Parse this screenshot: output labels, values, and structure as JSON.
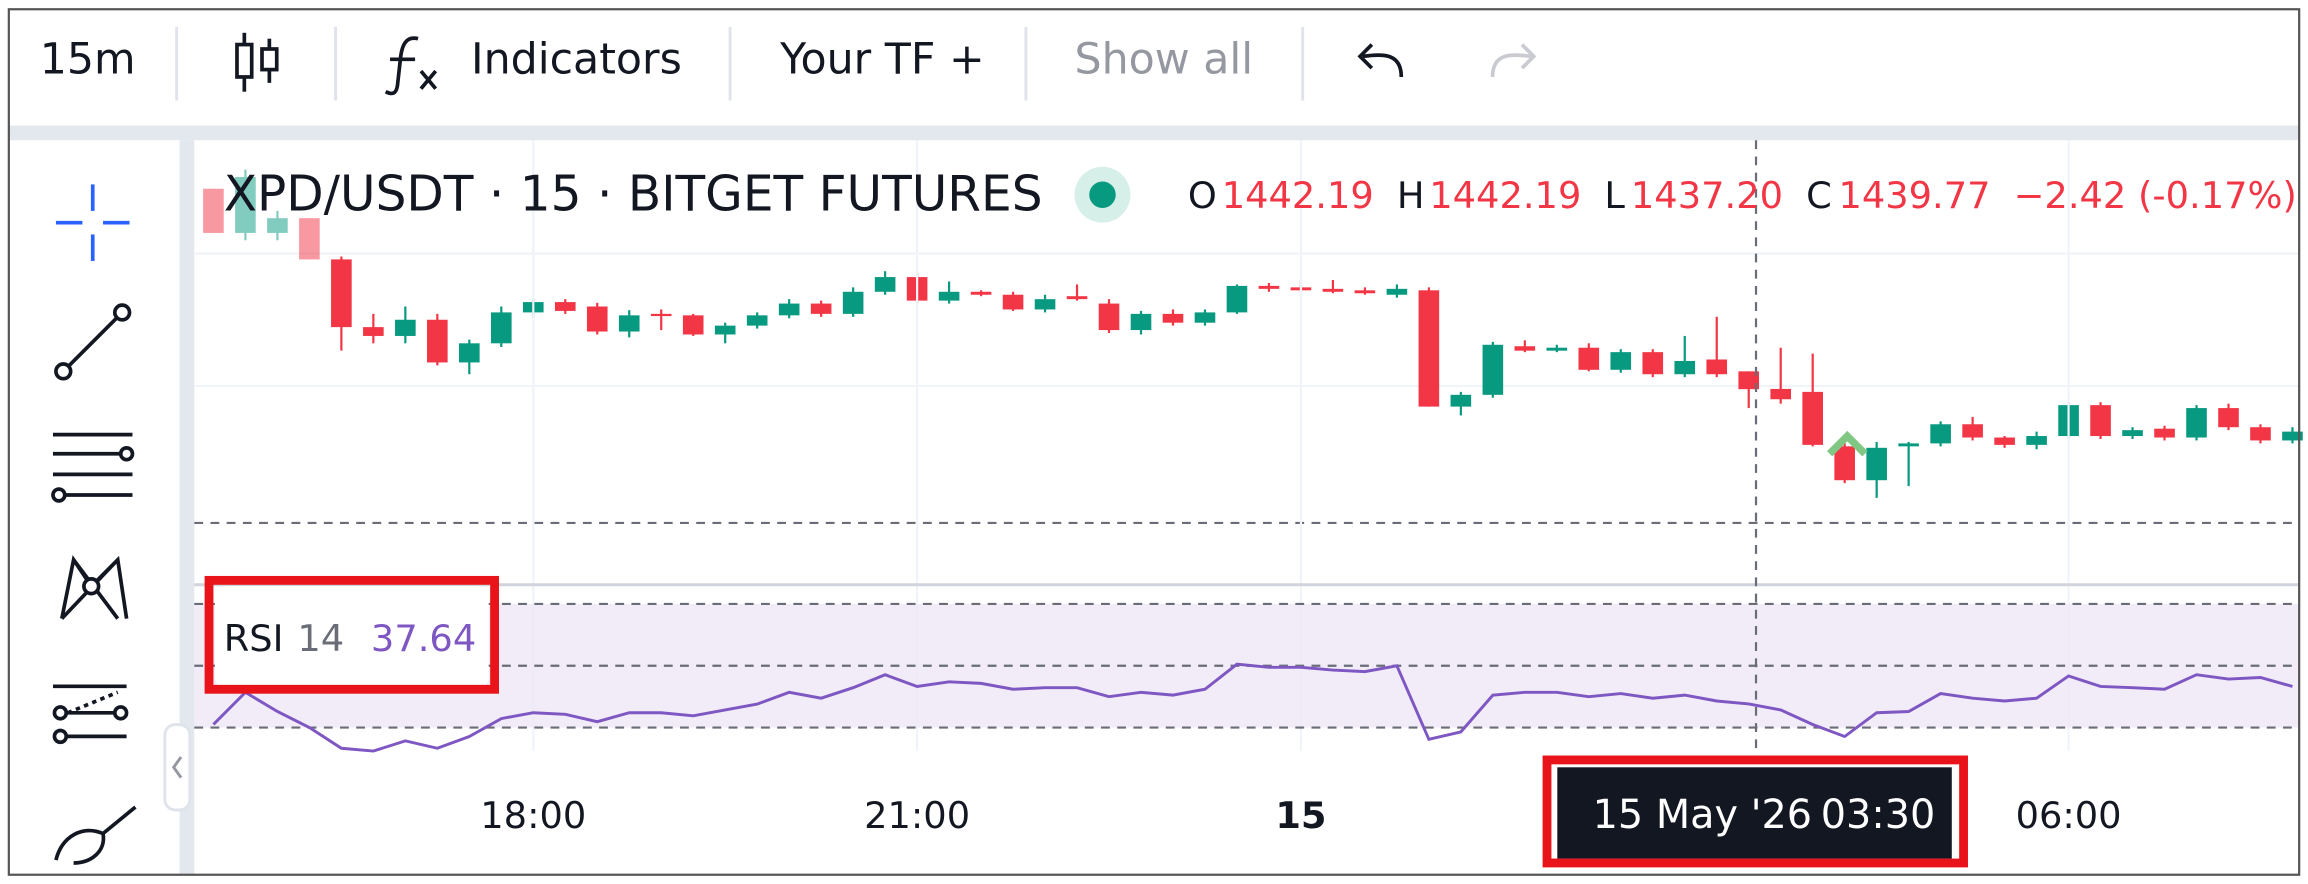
{
  "toolbar": {
    "interval": "15m",
    "indicators": "Indicators",
    "your_tf": "Your TF +",
    "show_all": "Show all"
  },
  "legend": {
    "symbol": "XPD/USDT · 15 · BITGET FUTURES",
    "o_label": "O",
    "open": "1442.19",
    "h_label": "H",
    "high": "1442.19",
    "l_label": "L",
    "low": "1437.20",
    "c_label": "C",
    "close": "1439.77",
    "change": "−2.42 (-0.17%)"
  },
  "rsi_legend": {
    "name": "RSI",
    "length": "14",
    "value": "37.64"
  },
  "crosshair": {
    "date": "15 May '26",
    "time": "03:30"
  },
  "chart_data": [
    {
      "type": "candlestick",
      "up_color": "#089981",
      "down_color": "#f23645",
      "ylim": [
        1413.59,
        1473.59
      ],
      "x": [
        "2026-05-14T15:30",
        "2026-05-14T15:45",
        "2026-05-14T16:00",
        "2026-05-14T16:15",
        "2026-05-14T16:30",
        "2026-05-14T16:45",
        "2026-05-14T17:00",
        "2026-05-14T17:15",
        "2026-05-14T17:30",
        "2026-05-14T17:45",
        "2026-05-14T18:00",
        "2026-05-14T18:15",
        "2026-05-14T18:30",
        "2026-05-14T18:45",
        "2026-05-14T19:00",
        "2026-05-14T19:15",
        "2026-05-14T19:30",
        "2026-05-14T19:45",
        "2026-05-14T20:00",
        "2026-05-14T20:15",
        "2026-05-14T20:30",
        "2026-05-14T20:45",
        "2026-05-14T21:00",
        "2026-05-14T21:15",
        "2026-05-14T21:30",
        "2026-05-14T21:45",
        "2026-05-14T22:00",
        "2026-05-14T22:15",
        "2026-05-14T22:30",
        "2026-05-14T22:45",
        "2026-05-14T23:00",
        "2026-05-14T23:15",
        "2026-05-14T23:30",
        "2026-05-14T23:45",
        "2026-05-15T00:00",
        "2026-05-15T00:15",
        "2026-05-15T00:30",
        "2026-05-15T00:45",
        "2026-05-15T01:00",
        "2026-05-15T01:15",
        "2026-05-15T01:30",
        "2026-05-15T01:45",
        "2026-05-15T02:00",
        "2026-05-15T02:15",
        "2026-05-15T02:30",
        "2026-05-15T02:45",
        "2026-05-15T03:00",
        "2026-05-15T03:15",
        "2026-05-15T03:30",
        "2026-05-15T03:45",
        "2026-05-15T04:00",
        "2026-05-15T04:15",
        "2026-05-15T04:30",
        "2026-05-15T04:45",
        "2026-05-15T05:00",
        "2026-05-15T05:15",
        "2026-05-15T05:30",
        "2026-05-15T05:45",
        "2026-05-15T06:00",
        "2026-05-15T06:15",
        "2026-05-15T06:30",
        "2026-05-15T06:45",
        "2026-05-15T07:00",
        "2026-05-15T07:15",
        "2026-05-15T07:30",
        "2026-05-15T07:45"
      ],
      "open": [
        1467,
        1461,
        1461,
        1463,
        1457.4,
        1448.2,
        1447,
        1449.2,
        1443.4,
        1446,
        1450.2,
        1451.6,
        1451,
        1447.6,
        1450,
        1449.8,
        1447.2,
        1448.4,
        1449.8,
        1451.4,
        1450,
        1453,
        1455,
        1451.8,
        1453,
        1452.6,
        1450.6,
        1452.4,
        1451.4,
        1447.8,
        1450,
        1448.8,
        1450.2,
        1453.8,
        1453.6,
        1453.4,
        1453.2,
        1452.6,
        1453.2,
        1437.4,
        1439,
        1445.6,
        1445,
        1445.4,
        1442.4,
        1444.8,
        1441.8,
        1443.8,
        1442.19,
        1439.8,
        1439.4,
        1432,
        1427.4,
        1432,
        1432.4,
        1435,
        1433.2,
        1432.2,
        1433.4,
        1437.6,
        1433.4,
        1434.4,
        1433.2,
        1437.2,
        1434.6,
        1432.8
      ],
      "high": [
        1467,
        1469.6,
        1464,
        1463,
        1457.8,
        1450,
        1451,
        1450,
        1446.5,
        1451,
        1452,
        1452,
        1451.5,
        1450.5,
        1450.6,
        1450,
        1448.8,
        1450.2,
        1452,
        1451.8,
        1453.6,
        1455.8,
        1455.6,
        1454.4,
        1453.2,
        1453,
        1452.6,
        1454,
        1452,
        1450.4,
        1450.6,
        1450.6,
        1454,
        1454.2,
        1454.6,
        1454.6,
        1453.6,
        1454,
        1453.6,
        1439.4,
        1446.2,
        1446.4,
        1445.8,
        1446,
        1445.2,
        1445.2,
        1447,
        1449.6,
        1442.19,
        1445.4,
        1444.6,
        1432.4,
        1432.6,
        1432.6,
        1435.4,
        1436,
        1433.4,
        1434,
        1438,
        1438,
        1434.6,
        1434.8,
        1437.6,
        1437.8,
        1435,
        1434.6
      ],
      "low": [
        1461,
        1460,
        1460,
        1457.4,
        1445,
        1446,
        1446,
        1443,
        1441.8,
        1445.5,
        1449.5,
        1450,
        1447.2,
        1446.8,
        1447.8,
        1447,
        1446,
        1448,
        1449.4,
        1449.6,
        1449.6,
        1452.6,
        1451.4,
        1451.4,
        1452.4,
        1450.4,
        1450.2,
        1451.8,
        1447.4,
        1447.2,
        1448.4,
        1448.4,
        1450,
        1453,
        1453,
        1452.8,
        1452.6,
        1452.2,
        1437.4,
        1436.2,
        1438.6,
        1444.8,
        1444.8,
        1442.2,
        1442,
        1441.4,
        1441.4,
        1441.4,
        1437.2,
        1437.8,
        1432,
        1427,
        1425,
        1426.6,
        1432,
        1432.8,
        1431.8,
        1431.6,
        1433,
        1433,
        1433,
        1432.8,
        1432.8,
        1434.2,
        1432.4,
        1432.4
      ],
      "close": [
        1461,
        1468.6,
        1463,
        1457.4,
        1448.2,
        1447,
        1449.2,
        1443.4,
        1446,
        1450.2,
        1451.6,
        1450.4,
        1447.6,
        1449.8,
        1449.8,
        1447.2,
        1448.4,
        1449.8,
        1451.4,
        1450,
        1453,
        1455,
        1451.8,
        1453,
        1452.6,
        1450.6,
        1452,
        1452,
        1447.8,
        1450,
        1448.8,
        1450.2,
        1453.8,
        1453.4,
        1453.2,
        1453,
        1452.8,
        1453.4,
        1437.4,
        1439,
        1445.8,
        1445,
        1445.4,
        1442.4,
        1444.8,
        1441.8,
        1443.6,
        1441.8,
        1439.77,
        1438.4,
        1432.2,
        1427.4,
        1431.8,
        1432.4,
        1435,
        1433.2,
        1432.2,
        1433.4,
        1437.6,
        1433.4,
        1434.2,
        1433.2,
        1437.2,
        1434.6,
        1432.8,
        1434
      ],
      "xticks": [
        {
          "value": "2026-05-14T18:00",
          "label": "18:00"
        },
        {
          "value": "2026-05-14T21:00",
          "label": "21:00"
        },
        {
          "value": "2026-05-15T00:00",
          "label": "15"
        },
        {
          "value": "2026-05-15T06:00",
          "label": "06:00"
        }
      ]
    },
    {
      "type": "line",
      "color": "#7e57c2",
      "ylim": [
        20,
        76.2
      ],
      "levels": [
        30,
        50,
        70
      ],
      "values": [
        31,
        41.4,
        35.2,
        30,
        23.3,
        22.4,
        25.7,
        23.3,
        27.1,
        32.9,
        34.8,
        34.3,
        31.9,
        34.8,
        34.8,
        33.8,
        35.7,
        37.6,
        41.4,
        39.5,
        42.9,
        47.1,
        43.3,
        44.8,
        44.3,
        42.4,
        42.9,
        42.9,
        40,
        41.4,
        40.5,
        42.4,
        50.5,
        49.5,
        49.5,
        48.6,
        48.1,
        50,
        26.2,
        28.6,
        40.5,
        41.4,
        41.4,
        40,
        41,
        39.5,
        40.5,
        38.6,
        37.64,
        35.7,
        31,
        27.1,
        34.8,
        35.2,
        41,
        39.5,
        38.6,
        39.5,
        46.7,
        43.3,
        42.9,
        42.4,
        47.1,
        45.7,
        46.2,
        43.3
      ]
    }
  ]
}
